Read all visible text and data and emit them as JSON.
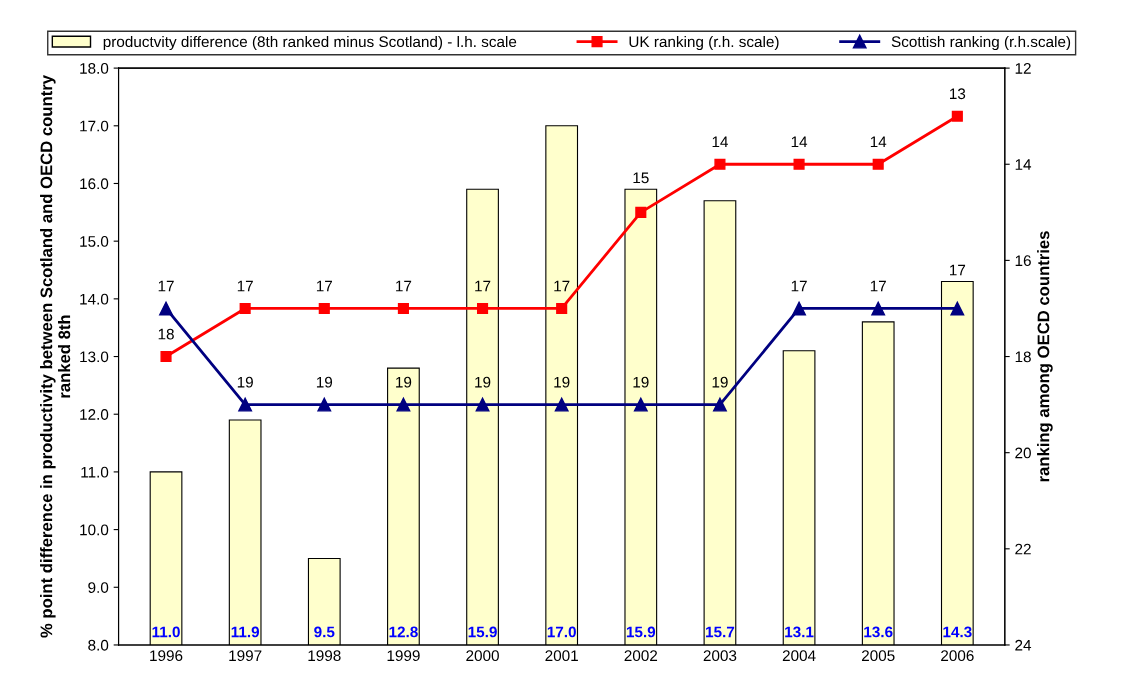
{
  "chart_data": {
    "type": "bar",
    "ylabel": "% point difference in productivity between Scotland and OECD country\nranked 8th",
    "y2label": "ranking among OECD countries",
    "categories": [
      "1996",
      "1997",
      "1998",
      "1999",
      "2000",
      "2001",
      "2002",
      "2003",
      "2004",
      "2005",
      "2006"
    ],
    "series": [
      {
        "name": "productvity difference (8th ranked minus Scotland) - l.h. scale",
        "type": "bar",
        "color": "#ffffcc",
        "values": [
          11.0,
          11.9,
          9.5,
          12.8,
          15.9,
          17.0,
          15.9,
          15.7,
          13.1,
          13.6,
          14.3
        ],
        "value_labels": [
          "11.0",
          "11.9",
          "9.5",
          "12.8",
          "15.9",
          "17.0",
          "15.9",
          "15.7",
          "13.1",
          "13.6",
          "14.3"
        ]
      },
      {
        "name": "UK ranking (r.h. scale)",
        "type": "line",
        "axis": "y2",
        "color": "#ff0000",
        "marker": "square",
        "values": [
          18,
          17,
          17,
          17,
          17,
          17,
          15,
          14,
          14,
          14,
          13
        ]
      },
      {
        "name": "Scottish ranking (r.h.scale)",
        "type": "line",
        "axis": "y2",
        "color": "#000080",
        "marker": "triangle",
        "values": [
          17,
          19,
          19,
          19,
          19,
          19,
          19,
          19,
          17,
          17,
          17
        ]
      }
    ],
    "ylim": [
      8.0,
      18.0
    ],
    "yticks": [
      {
        "value": 8,
        "label": "8.0"
      },
      {
        "value": 9,
        "label": "9.0"
      },
      {
        "value": 10,
        "label": "10.0"
      },
      {
        "value": 11,
        "label": "11.0"
      },
      {
        "value": 12,
        "label": "12.0"
      },
      {
        "value": 13,
        "label": "13.0"
      },
      {
        "value": 14,
        "label": "14.0"
      },
      {
        "value": 15,
        "label": "15.0"
      },
      {
        "value": 16,
        "label": "16.0"
      },
      {
        "value": 17,
        "label": "17.0"
      },
      {
        "value": 18,
        "label": "18.0"
      }
    ],
    "y2lim": [
      24,
      12
    ],
    "y2ticks": [
      12,
      14,
      16,
      18,
      20,
      22,
      24
    ],
    "data_labels": true,
    "legend": "top",
    "grid": false
  }
}
